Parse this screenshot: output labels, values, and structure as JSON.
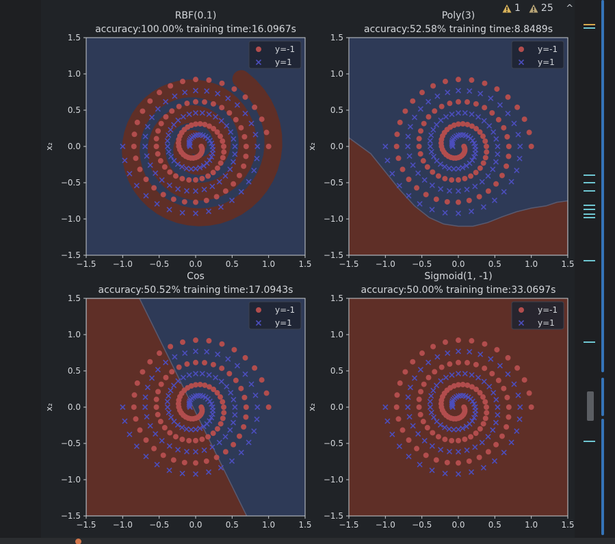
{
  "inspection": {
    "warnings": "1",
    "weak_warnings": "25",
    "prev_label": "^",
    "next_label": "⌄"
  },
  "status": {
    "text": ""
  },
  "colors": {
    "class_neg_fill": "#5f2f27",
    "class_pos_fill": "#2e3a57",
    "neg_marker": "#b24d4d",
    "pos_marker": "#4c4ebd",
    "warning": "#d8b25a",
    "marker_cyan": "#6fc7d3",
    "marker_yellow": "#d8a84c"
  },
  "chart_data": [
    {
      "type": "scatter",
      "title": "RBF(0.1)",
      "subtitle": "accuracy:100.00%   training time:16.0967s",
      "xlabel": "",
      "ylabel": "x₂",
      "xlim": [
        -1.5,
        1.5
      ],
      "ylim": [
        -1.5,
        1.5
      ],
      "xticks": [
        "−1.5",
        "−1.0",
        "−0.5",
        "0.0",
        "0.5",
        "1.0",
        "1.5"
      ],
      "yticks": [
        "1.5",
        "1.0",
        "0.5",
        "0.0",
        "−0.5",
        "−1.0",
        "−1.5"
      ],
      "legend": {
        "position": "top-right",
        "entries": [
          "y=-1",
          "y=1"
        ]
      },
      "decision_region": "spiral"
    },
    {
      "type": "scatter",
      "title": "Poly(3)",
      "subtitle": "accuracy:52.58%   training time:8.8489s",
      "xlabel": "",
      "ylabel": "x₂",
      "xlim": [
        -1.5,
        1.5
      ],
      "ylim": [
        -1.5,
        1.5
      ],
      "xticks": [
        "−1.5",
        "−1.0",
        "−0.5",
        "0.0",
        "0.5",
        "1.0",
        "1.5"
      ],
      "yticks": [
        "1.5",
        "1.0",
        "0.5",
        "0.0",
        "−0.5",
        "−1.0",
        "−1.5"
      ],
      "legend": {
        "position": "top-right",
        "entries": [
          "y=-1",
          "y=1"
        ]
      },
      "decision_region": "poly",
      "boundary": [
        [
          -1.5,
          0.12
        ],
        [
          -1.2,
          -0.1
        ],
        [
          -1.0,
          -0.35
        ],
        [
          -0.8,
          -0.6
        ],
        [
          -0.6,
          -0.82
        ],
        [
          -0.4,
          -0.98
        ],
        [
          -0.2,
          -1.07
        ],
        [
          0.0,
          -1.1
        ],
        [
          0.2,
          -1.1
        ],
        [
          0.4,
          -1.05
        ],
        [
          0.6,
          -0.97
        ],
        [
          0.8,
          -0.9
        ],
        [
          1.0,
          -0.85
        ],
        [
          1.2,
          -0.82
        ],
        [
          1.35,
          -0.77
        ],
        [
          1.5,
          -0.75
        ]
      ]
    },
    {
      "type": "scatter",
      "title": "Cos",
      "subtitle": "accuracy:50.52%   training time:17.0943s",
      "xlabel": "",
      "ylabel": "x₂",
      "xlim": [
        -1.5,
        1.5
      ],
      "ylim": [
        -1.5,
        1.5
      ],
      "xticks": [
        "−1.5",
        "−1.0",
        "−0.5",
        "0.0",
        "0.5",
        "1.0",
        "1.5"
      ],
      "yticks": [
        "1.5",
        "1.0",
        "0.5",
        "0.0",
        "−0.5",
        "−1.0",
        "−1.5"
      ],
      "legend": {
        "position": "top-right",
        "entries": [
          "y=-1",
          "y=1"
        ]
      },
      "decision_region": "cos",
      "boundary": [
        [
          -0.77,
          1.5
        ],
        [
          0.7,
          -1.5
        ]
      ]
    },
    {
      "type": "scatter",
      "title": "Sigmoid(1, -1)",
      "subtitle": "accuracy:50.00%   training time:33.0697s",
      "xlabel": "",
      "ylabel": "x₂",
      "xlim": [
        -1.5,
        1.5
      ],
      "ylim": [
        -1.5,
        1.5
      ],
      "xticks": [
        "−1.5",
        "−1.0",
        "−0.5",
        "0.0",
        "0.5",
        "1.0",
        "1.5"
      ],
      "yticks": [
        "1.5",
        "1.0",
        "0.5",
        "0.0",
        "−0.5",
        "−1.0",
        "−1.5"
      ],
      "legend": {
        "position": "top-right",
        "entries": [
          "y=-1",
          "y=1"
        ]
      },
      "decision_region": "all-negative"
    }
  ]
}
